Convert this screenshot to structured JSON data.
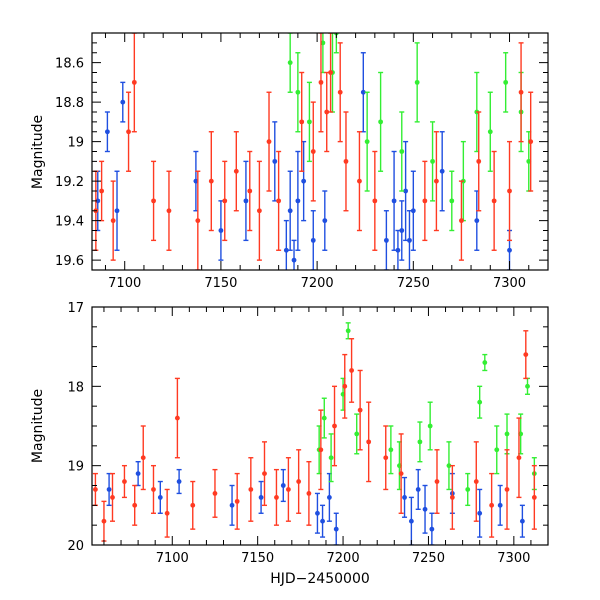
{
  "chart_data": [
    {
      "type": "scatter",
      "panel": "top",
      "xlabel": "",
      "ylabel": "Magnitude",
      "xlim": [
        7083,
        7320
      ],
      "ylim": [
        19.65,
        18.45
      ],
      "y_inverted": true,
      "x_ticks": [
        7100,
        7150,
        7200,
        7250,
        7300
      ],
      "x_tick_labels": [
        "7100",
        "7150",
        "7200",
        "7250",
        "7300"
      ],
      "y_ticks": [
        18.6,
        18.8,
        19.0,
        19.2,
        19.4,
        19.6
      ],
      "y_tick_labels": [
        "18.6",
        "18.8",
        "19",
        "19.2",
        "19.4",
        "19.6"
      ],
      "error_bars": true,
      "series": [
        {
          "name": "blue",
          "color": "#1f4fe0",
          "x": [
            7086,
            7091,
            7096,
            7099,
            7137,
            7150,
            7163,
            7178,
            7184,
            7186,
            7188,
            7190,
            7193,
            7198,
            7204,
            7224,
            7236,
            7240,
            7242,
            7244,
            7246,
            7248,
            7250,
            7265,
            7283,
            7300
          ],
          "y": [
            19.3,
            18.95,
            19.35,
            18.8,
            19.2,
            19.45,
            19.3,
            19.1,
            19.55,
            19.35,
            19.6,
            19.3,
            19.2,
            19.5,
            19.4,
            18.75,
            19.5,
            19.3,
            19.55,
            19.45,
            19.25,
            19.5,
            19.35,
            19.15,
            19.4,
            19.55
          ],
          "err": [
            0.15,
            0.1,
            0.2,
            0.1,
            0.15,
            0.15,
            0.2,
            0.2,
            0.15,
            0.2,
            0.1,
            0.25,
            0.2,
            0.15,
            0.15,
            0.2,
            0.15,
            0.25,
            0.1,
            0.15,
            0.25,
            0.15,
            0.2,
            0.2,
            0.15,
            0.1
          ]
        },
        {
          "name": "green",
          "color": "#33ee33",
          "x": [
            7186,
            7190,
            7196,
            7203,
            7208,
            7210,
            7226,
            7233,
            7244,
            7252,
            7260,
            7270,
            7276,
            7283,
            7290,
            7298,
            7306,
            7310
          ],
          "y": [
            18.6,
            18.75,
            18.9,
            18.5,
            18.65,
            18.45,
            19.0,
            18.9,
            19.05,
            18.7,
            19.1,
            19.3,
            19.2,
            18.85,
            18.95,
            18.7,
            18.85,
            19.1
          ],
          "err": [
            0.15,
            0.2,
            0.2,
            0.15,
            0.2,
            0.1,
            0.25,
            0.25,
            0.2,
            0.2,
            0.2,
            0.15,
            0.2,
            0.2,
            0.2,
            0.15,
            0.2,
            0.15
          ]
        },
        {
          "name": "red",
          "color": "#ff3a22",
          "x": [
            7085,
            7088,
            7094,
            7102,
            7105,
            7115,
            7123,
            7138,
            7145,
            7152,
            7158,
            7165,
            7170,
            7175,
            7180,
            7192,
            7198,
            7202,
            7205,
            7207,
            7212,
            7215,
            7222,
            7230,
            7256,
            7262,
            7275,
            7284,
            7292,
            7300,
            7306,
            7311
          ],
          "y": [
            19.35,
            19.25,
            19.4,
            18.95,
            18.7,
            19.3,
            19.35,
            19.4,
            19.2,
            19.3,
            19.15,
            19.25,
            19.35,
            19.0,
            19.3,
            18.9,
            19.05,
            18.7,
            18.85,
            18.65,
            18.75,
            19.1,
            19.2,
            19.3,
            19.3,
            19.2,
            19.4,
            19.1,
            19.3,
            19.25,
            18.75,
            19.0
          ],
          "err": [
            0.2,
            0.15,
            0.2,
            0.2,
            0.25,
            0.2,
            0.2,
            0.25,
            0.25,
            0.2,
            0.2,
            0.2,
            0.25,
            0.25,
            0.25,
            0.25,
            0.25,
            0.25,
            0.2,
            0.2,
            0.25,
            0.25,
            0.25,
            0.25,
            0.2,
            0.25,
            0.2,
            0.25,
            0.25,
            0.25,
            0.25,
            0.25
          ]
        }
      ]
    },
    {
      "type": "scatter",
      "panel": "bottom",
      "xlabel": "HJD−2450000",
      "ylabel": "Magnitude",
      "xlim": [
        7053,
        7320
      ],
      "ylim": [
        20.0,
        17.0
      ],
      "y_inverted": true,
      "x_ticks": [
        7100,
        7150,
        7200,
        7250,
        7300
      ],
      "x_tick_labels": [
        "7100",
        "7150",
        "7200",
        "7250",
        "7300"
      ],
      "y_ticks": [
        17,
        18,
        19,
        20
      ],
      "y_tick_labels": [
        "17",
        "18",
        "19",
        "20"
      ],
      "error_bars": true,
      "series": [
        {
          "name": "blue",
          "color": "#1f4fe0",
          "x": [
            7063,
            7080,
            7093,
            7104,
            7135,
            7152,
            7165,
            7185,
            7188,
            7192,
            7196,
            7236,
            7240,
            7244,
            7248,
            7252,
            7264,
            7280,
            7292,
            7305
          ],
          "y": [
            19.3,
            19.1,
            19.4,
            19.2,
            19.5,
            19.4,
            19.25,
            19.6,
            19.7,
            19.4,
            19.8,
            19.4,
            19.7,
            19.3,
            19.55,
            19.8,
            19.35,
            19.6,
            19.5,
            19.7
          ],
          "err": [
            0.2,
            0.15,
            0.2,
            0.15,
            0.25,
            0.2,
            0.2,
            0.25,
            0.2,
            0.3,
            0.2,
            0.25,
            0.3,
            0.25,
            0.3,
            0.2,
            0.25,
            0.3,
            0.25,
            0.2
          ]
        },
        {
          "name": "green",
          "color": "#33ee33",
          "x": [
            7186,
            7189,
            7193,
            7200,
            7203,
            7208,
            7228,
            7233,
            7245,
            7251,
            7262,
            7273,
            7280,
            7283,
            7290,
            7296,
            7304,
            7308,
            7312
          ],
          "y": [
            18.8,
            18.4,
            18.9,
            18.1,
            17.3,
            18.6,
            18.8,
            19.0,
            18.7,
            18.5,
            19.0,
            19.3,
            18.2,
            17.7,
            18.8,
            18.6,
            18.6,
            18.0,
            19.1
          ],
          "err": [
            0.3,
            0.25,
            0.3,
            0.2,
            0.1,
            0.25,
            0.3,
            0.3,
            0.25,
            0.3,
            0.3,
            0.2,
            0.2,
            0.1,
            0.3,
            0.25,
            0.25,
            0.1,
            0.2
          ]
        },
        {
          "name": "red",
          "color": "#ff3a22",
          "x": [
            7055,
            7060,
            7065,
            7072,
            7078,
            7083,
            7089,
            7097,
            7103,
            7112,
            7125,
            7138,
            7146,
            7154,
            7161,
            7168,
            7174,
            7180,
            7187,
            7195,
            7201,
            7205,
            7210,
            7215,
            7225,
            7234,
            7255,
            7264,
            7278,
            7287,
            7296,
            7303,
            7307,
            7312
          ],
          "y": [
            19.3,
            19.7,
            19.4,
            19.2,
            19.5,
            18.9,
            19.3,
            19.6,
            18.4,
            19.5,
            19.35,
            19.45,
            19.3,
            19.1,
            19.4,
            19.3,
            19.2,
            19.35,
            18.8,
            18.5,
            18.0,
            17.8,
            18.3,
            18.7,
            18.9,
            19.1,
            19.2,
            19.4,
            19.2,
            19.5,
            19.3,
            18.9,
            17.6,
            19.4
          ],
          "err": [
            0.2,
            0.25,
            0.3,
            0.2,
            0.25,
            0.4,
            0.3,
            0.3,
            0.5,
            0.3,
            0.3,
            0.35,
            0.4,
            0.4,
            0.35,
            0.4,
            0.4,
            0.4,
            0.5,
            0.5,
            0.4,
            0.4,
            0.5,
            0.5,
            0.4,
            0.5,
            0.4,
            0.4,
            0.5,
            0.4,
            0.5,
            0.5,
            0.3,
            0.4
          ]
        }
      ]
    }
  ]
}
